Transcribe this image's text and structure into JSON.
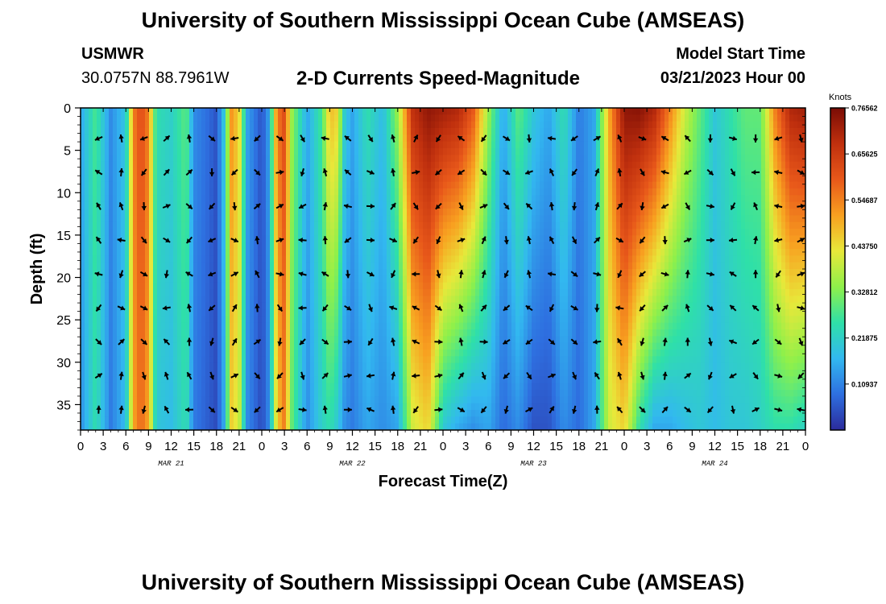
{
  "header": {
    "title": "University of Southern Mississippi Ocean Cube (AMSEAS)",
    "station": "USMWR",
    "coordinates": "30.0757N  88.7961W",
    "chart_title": "2-D Currents Speed-Magnitude",
    "model_start_label": "Model Start Time",
    "model_start_value": "03/21/2023 Hour 00"
  },
  "footer": {
    "title": "University of Southern Mississippi Ocean Cube (AMSEAS)"
  },
  "colors": {
    "scale": [
      "#2b2b9c",
      "#2e6fe0",
      "#32b8f0",
      "#2fe0a8",
      "#8ff04a",
      "#e8e83a",
      "#f8a020",
      "#e8581a",
      "#c0300e",
      "#7a0c05"
    ],
    "arrow": "#000000"
  },
  "chart_data": {
    "type": "heatmap",
    "title": "2-D Currents Speed-Magnitude",
    "xlabel": "Forecast Time(Z)",
    "ylabel": "Depth (ft)",
    "x_range_hours": [
      0,
      96
    ],
    "ylim": [
      0,
      38
    ],
    "x_tick_labels": [
      "0",
      "3",
      "6",
      "9",
      "12",
      "15",
      "18",
      "21",
      "0",
      "3",
      "6",
      "9",
      "12",
      "15",
      "18",
      "21",
      "0",
      "3",
      "6",
      "9",
      "12",
      "15",
      "18",
      "21",
      "0",
      "3",
      "6",
      "9",
      "12",
      "15",
      "18",
      "21",
      "0"
    ],
    "date_labels": [
      {
        "label": "MAR 21",
        "hour": 12
      },
      {
        "label": "MAR 22",
        "hour": 36
      },
      {
        "label": "MAR 23",
        "hour": 60
      },
      {
        "label": "MAR 24",
        "hour": 84
      }
    ],
    "y_ticks": [
      0,
      5,
      10,
      15,
      20,
      25,
      30,
      35
    ],
    "colorbar": {
      "unit": "Knots",
      "min": 0.0,
      "max": 0.765625,
      "tick_labels": [
        "0.76562",
        "0.65625",
        "0.54687",
        "0.43750",
        "0.32812",
        "0.21875",
        "0.10937"
      ],
      "tick_values": [
        0.765625,
        0.65625,
        0.546875,
        0.4375,
        0.328125,
        0.21875,
        0.109375
      ]
    },
    "time_profile_hours": [
      0,
      2,
      4,
      6,
      7,
      8,
      9,
      10,
      12,
      14,
      15,
      16,
      17,
      18,
      19,
      20,
      21,
      22,
      23,
      24,
      25,
      26,
      27,
      28,
      30,
      32,
      33,
      34,
      35,
      36,
      38,
      40,
      42,
      44,
      46,
      48,
      50,
      52,
      54,
      56,
      58,
      60,
      62,
      64,
      66,
      68,
      70,
      72,
      74,
      76,
      78,
      80,
      82,
      84,
      86,
      88,
      90,
      92,
      94,
      96
    ],
    "surface_speed_knots": [
      0.15,
      0.28,
      0.12,
      0.2,
      0.55,
      0.62,
      0.55,
      0.25,
      0.22,
      0.3,
      0.12,
      0.1,
      0.08,
      0.05,
      0.2,
      0.52,
      0.45,
      0.15,
      0.1,
      0.05,
      0.15,
      0.55,
      0.62,
      0.35,
      0.15,
      0.28,
      0.48,
      0.45,
      0.2,
      0.15,
      0.25,
      0.18,
      0.35,
      0.68,
      0.74,
      0.72,
      0.7,
      0.6,
      0.35,
      0.15,
      0.3,
      0.2,
      0.15,
      0.25,
      0.1,
      0.15,
      0.5,
      0.74,
      0.75,
      0.7,
      0.55,
      0.4,
      0.3,
      0.2,
      0.25,
      0.3,
      0.3,
      0.55,
      0.7,
      0.72
    ],
    "bottom_speed_knots": [
      0.12,
      0.25,
      0.1,
      0.18,
      0.5,
      0.58,
      0.5,
      0.2,
      0.18,
      0.25,
      0.1,
      0.08,
      0.06,
      0.04,
      0.15,
      0.45,
      0.4,
      0.12,
      0.08,
      0.04,
      0.12,
      0.45,
      0.55,
      0.3,
      0.12,
      0.22,
      0.25,
      0.2,
      0.12,
      0.1,
      0.15,
      0.12,
      0.15,
      0.4,
      0.45,
      0.2,
      0.15,
      0.12,
      0.15,
      0.08,
      0.12,
      0.05,
      0.05,
      0.12,
      0.08,
      0.15,
      0.4,
      0.45,
      0.25,
      0.15,
      0.15,
      0.18,
      0.2,
      0.18,
      0.2,
      0.2,
      0.22,
      0.25,
      0.25,
      0.22
    ],
    "vector_field": {
      "times_hours": [
        2.4,
        5.4,
        8.4,
        11.4,
        14.4,
        17.4,
        20.4,
        23.4,
        26.4,
        29.4,
        32.4,
        35.4,
        38.4,
        41.4,
        44.4,
        47.4,
        50.4,
        53.4,
        56.4,
        59.4,
        62.4,
        65.4,
        68.4,
        71.4,
        74.4,
        77.4,
        80.4,
        83.4,
        86.4,
        89.4,
        92.4,
        95.4
      ],
      "depths_ft": [
        3.6,
        7.6,
        11.6,
        15.6,
        19.6,
        23.6,
        27.6,
        31.6,
        35.6
      ]
    }
  }
}
